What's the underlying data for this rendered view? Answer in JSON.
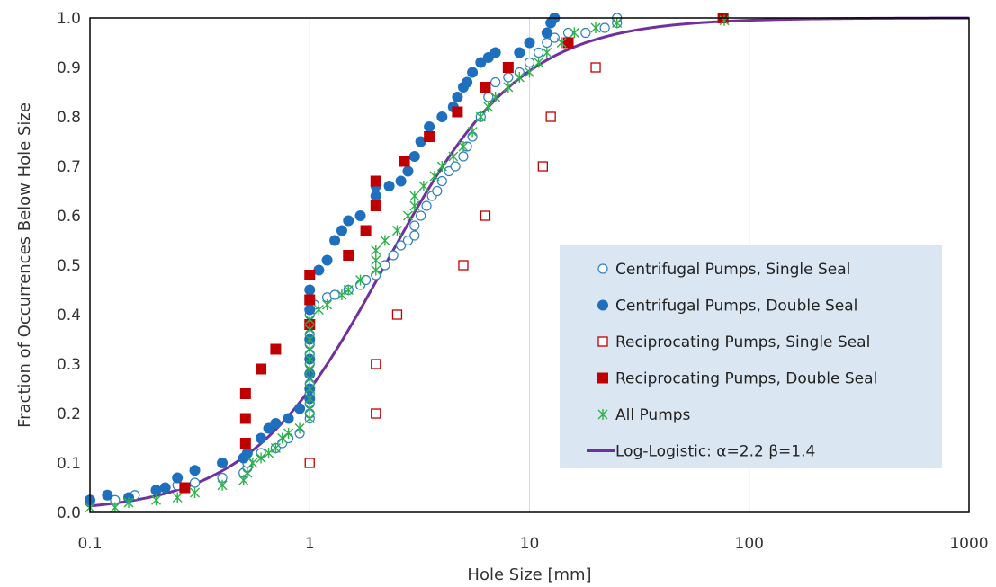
{
  "chart_data": {
    "type": "scatter",
    "xlabel": "Hole Size [mm]",
    "ylabel": "Fraction of Occurrences Below Hole Size",
    "x_scale": "log",
    "xlim": [
      0.1,
      1000
    ],
    "ylim": [
      0,
      1
    ],
    "x_ticks": [
      0.1,
      1,
      10,
      100,
      1000
    ],
    "x_tick_labels": [
      "0.1",
      "1",
      "10",
      "100",
      "1000"
    ],
    "y_ticks": [
      0,
      0.1,
      0.2,
      0.3,
      0.4,
      0.5,
      0.6,
      0.7,
      0.8,
      0.9,
      1.0
    ],
    "y_tick_labels": [
      "0.0",
      "0.1",
      "0.2",
      "0.3",
      "0.4",
      "0.5",
      "0.6",
      "0.7",
      "0.8",
      "0.9",
      "1.0"
    ],
    "grid": "vertical",
    "legend_position": "right",
    "series": [
      {
        "name": "Centrifugal Pumps, Single Seal",
        "marker": "open-circle",
        "color": "#2e7fc1",
        "points": [
          [
            0.1,
            0.02
          ],
          [
            0.13,
            0.025
          ],
          [
            0.16,
            0.035
          ],
          [
            0.2,
            0.045
          ],
          [
            0.25,
            0.055
          ],
          [
            0.3,
            0.06
          ],
          [
            0.4,
            0.07
          ],
          [
            0.5,
            0.08
          ],
          [
            0.52,
            0.09
          ],
          [
            0.52,
            0.1
          ],
          [
            0.6,
            0.12
          ],
          [
            0.7,
            0.13
          ],
          [
            0.75,
            0.14
          ],
          [
            0.8,
            0.15
          ],
          [
            0.9,
            0.16
          ],
          [
            1,
            0.19
          ],
          [
            1,
            0.2
          ],
          [
            1,
            0.22
          ],
          [
            1,
            0.24
          ],
          [
            1,
            0.26
          ],
          [
            1,
            0.28
          ],
          [
            1,
            0.3
          ],
          [
            1,
            0.32
          ],
          [
            1,
            0.34
          ],
          [
            1,
            0.36
          ],
          [
            1,
            0.38
          ],
          [
            1,
            0.4
          ],
          [
            1.05,
            0.42
          ],
          [
            1.2,
            0.435
          ],
          [
            1.3,
            0.44
          ],
          [
            1.5,
            0.45
          ],
          [
            1.7,
            0.46
          ],
          [
            1.8,
            0.47
          ],
          [
            2,
            0.48
          ],
          [
            2.2,
            0.5
          ],
          [
            2.4,
            0.52
          ],
          [
            2.6,
            0.54
          ],
          [
            2.8,
            0.55
          ],
          [
            3,
            0.56
          ],
          [
            3,
            0.58
          ],
          [
            3.2,
            0.6
          ],
          [
            3.4,
            0.62
          ],
          [
            3.6,
            0.64
          ],
          [
            3.8,
            0.65
          ],
          [
            4,
            0.67
          ],
          [
            4.3,
            0.69
          ],
          [
            4.6,
            0.7
          ],
          [
            5,
            0.72
          ],
          [
            5.2,
            0.74
          ],
          [
            5.5,
            0.76
          ],
          [
            6,
            0.8
          ],
          [
            6.5,
            0.84
          ],
          [
            7,
            0.87
          ],
          [
            8,
            0.88
          ],
          [
            9,
            0.89
          ],
          [
            10,
            0.91
          ],
          [
            11,
            0.93
          ],
          [
            12,
            0.95
          ],
          [
            13,
            0.96
          ],
          [
            15,
            0.97
          ],
          [
            18,
            0.97
          ],
          [
            22,
            0.98
          ],
          [
            25,
            0.99
          ],
          [
            25,
            1.0
          ]
        ]
      },
      {
        "name": "Centrifugal Pumps, Double Seal",
        "marker": "filled-circle",
        "color": "#1f6fbf",
        "points": [
          [
            0.1,
            0.025
          ],
          [
            0.12,
            0.035
          ],
          [
            0.15,
            0.03
          ],
          [
            0.2,
            0.045
          ],
          [
            0.22,
            0.05
          ],
          [
            0.25,
            0.07
          ],
          [
            0.3,
            0.085
          ],
          [
            0.4,
            0.1
          ],
          [
            0.5,
            0.11
          ],
          [
            0.52,
            0.12
          ],
          [
            0.6,
            0.15
          ],
          [
            0.65,
            0.17
          ],
          [
            0.7,
            0.18
          ],
          [
            0.8,
            0.19
          ],
          [
            0.9,
            0.21
          ],
          [
            1,
            0.23
          ],
          [
            1,
            0.25
          ],
          [
            1,
            0.28
          ],
          [
            1,
            0.31
          ],
          [
            1,
            0.35
          ],
          [
            1,
            0.38
          ],
          [
            1,
            0.41
          ],
          [
            1,
            0.45
          ],
          [
            1.1,
            0.49
          ],
          [
            1.2,
            0.51
          ],
          [
            1.3,
            0.55
          ],
          [
            1.4,
            0.57
          ],
          [
            1.5,
            0.59
          ],
          [
            1.7,
            0.6
          ],
          [
            2,
            0.64
          ],
          [
            2,
            0.66
          ],
          [
            2.3,
            0.66
          ],
          [
            2.6,
            0.67
          ],
          [
            2.8,
            0.69
          ],
          [
            3,
            0.72
          ],
          [
            3.2,
            0.75
          ],
          [
            3.5,
            0.78
          ],
          [
            4,
            0.8
          ],
          [
            4.5,
            0.82
          ],
          [
            4.7,
            0.84
          ],
          [
            5,
            0.86
          ],
          [
            5.2,
            0.87
          ],
          [
            5.5,
            0.89
          ],
          [
            6,
            0.91
          ],
          [
            6.5,
            0.92
          ],
          [
            7,
            0.93
          ],
          [
            9,
            0.93
          ],
          [
            10,
            0.95
          ],
          [
            12,
            0.97
          ],
          [
            12.5,
            0.99
          ],
          [
            13,
            1.0
          ]
        ]
      },
      {
        "name": "Reciprocating Pumps, Single Seal",
        "marker": "open-square",
        "color": "#c00000",
        "points": [
          [
            1,
            0.1
          ],
          [
            2,
            0.2
          ],
          [
            2,
            0.3
          ],
          [
            2.5,
            0.4
          ],
          [
            5,
            0.5
          ],
          [
            6.3,
            0.6
          ],
          [
            11.5,
            0.7
          ],
          [
            12.5,
            0.8
          ],
          [
            20,
            0.9
          ],
          [
            76,
            1.0
          ]
        ]
      },
      {
        "name": "Reciprocating Pumps, Double Seal",
        "marker": "filled-square",
        "color": "#c00000",
        "points": [
          [
            0.27,
            0.05
          ],
          [
            0.51,
            0.14
          ],
          [
            0.51,
            0.19
          ],
          [
            0.51,
            0.24
          ],
          [
            0.6,
            0.29
          ],
          [
            0.7,
            0.33
          ],
          [
            1,
            0.38
          ],
          [
            1,
            0.43
          ],
          [
            1,
            0.48
          ],
          [
            1.5,
            0.52
          ],
          [
            1.8,
            0.57
          ],
          [
            2,
            0.62
          ],
          [
            2,
            0.67
          ],
          [
            2.7,
            0.71
          ],
          [
            3.5,
            0.76
          ],
          [
            4.7,
            0.81
          ],
          [
            6.3,
            0.86
          ],
          [
            8,
            0.9
          ],
          [
            15,
            0.95
          ],
          [
            76,
            1.0
          ]
        ]
      },
      {
        "name": "All Pumps",
        "marker": "asterisk",
        "color": "#2db24a",
        "points": [
          [
            0.1,
            0.01
          ],
          [
            0.13,
            0.01
          ],
          [
            0.15,
            0.02
          ],
          [
            0.2,
            0.025
          ],
          [
            0.25,
            0.03
          ],
          [
            0.3,
            0.04
          ],
          [
            0.4,
            0.055
          ],
          [
            0.5,
            0.065
          ],
          [
            0.52,
            0.08
          ],
          [
            0.55,
            0.1
          ],
          [
            0.6,
            0.11
          ],
          [
            0.65,
            0.12
          ],
          [
            0.7,
            0.13
          ],
          [
            0.75,
            0.15
          ],
          [
            0.8,
            0.16
          ],
          [
            0.9,
            0.17
          ],
          [
            1,
            0.19
          ],
          [
            1,
            0.21
          ],
          [
            1,
            0.23
          ],
          [
            1,
            0.25
          ],
          [
            1,
            0.27
          ],
          [
            1,
            0.29
          ],
          [
            1,
            0.31
          ],
          [
            1,
            0.33
          ],
          [
            1,
            0.35
          ],
          [
            1,
            0.37
          ],
          [
            1,
            0.39
          ],
          [
            1.1,
            0.41
          ],
          [
            1.2,
            0.42
          ],
          [
            1.4,
            0.44
          ],
          [
            1.5,
            0.45
          ],
          [
            1.7,
            0.47
          ],
          [
            2,
            0.49
          ],
          [
            2,
            0.51
          ],
          [
            2,
            0.53
          ],
          [
            2.2,
            0.55
          ],
          [
            2.5,
            0.57
          ],
          [
            2.8,
            0.6
          ],
          [
            3,
            0.62
          ],
          [
            3,
            0.64
          ],
          [
            3.3,
            0.66
          ],
          [
            3.7,
            0.68
          ],
          [
            4,
            0.7
          ],
          [
            4.5,
            0.72
          ],
          [
            5,
            0.74
          ],
          [
            5.5,
            0.77
          ],
          [
            6,
            0.8
          ],
          [
            6.5,
            0.82
          ],
          [
            7,
            0.84
          ],
          [
            8,
            0.86
          ],
          [
            9,
            0.88
          ],
          [
            10,
            0.89
          ],
          [
            11,
            0.91
          ],
          [
            12,
            0.93
          ],
          [
            14,
            0.95
          ],
          [
            16,
            0.97
          ],
          [
            20,
            0.98
          ],
          [
            25,
            0.99
          ],
          [
            77,
            0.995
          ]
        ]
      }
    ],
    "fit": {
      "name": "Log-Logistic: α=2.2  β=1.4",
      "color": "#7030a0",
      "alpha": 2.2,
      "beta": 1.4,
      "x_range": [
        0.1,
        1000
      ]
    }
  }
}
